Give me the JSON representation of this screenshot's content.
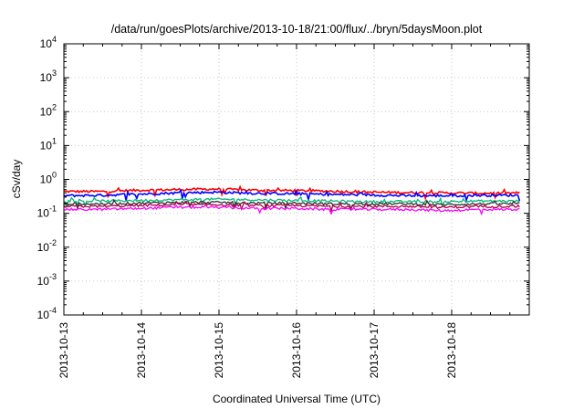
{
  "chart_data": {
    "type": "line",
    "title": "/data/run/goesPlots/archive/2013-10-18/21:00/flux/../bryn/5daysMoon.plot",
    "xlabel": "Coordinated Universal Time (UTC)",
    "ylabel": "cSv/day",
    "x_range": [
      "2013-10-13",
      "2013-10-19"
    ],
    "x_ticks": [
      "2013-10-13",
      "2013-10-14",
      "2013-10-15",
      "2013-10-16",
      "2013-10-17",
      "2013-10-18"
    ],
    "y_scale": "log",
    "ylim": [
      0.0001,
      10000
    ],
    "y_ticks": [
      {
        "base": "10",
        "exp": "-4"
      },
      {
        "base": "10",
        "exp": "-3"
      },
      {
        "base": "10",
        "exp": "-2"
      },
      {
        "base": "10",
        "exp": "-1"
      },
      {
        "base": "10",
        "exp": "0"
      },
      {
        "base": "10",
        "exp": "1"
      },
      {
        "base": "10",
        "exp": "2"
      },
      {
        "base": "10",
        "exp": "3"
      },
      {
        "base": "10",
        "exp": "4"
      }
    ],
    "grid": true,
    "x_grid_style": "dotted",
    "series": [
      {
        "color": "#ff0000",
        "y": [
          0.44,
          0.44,
          0.48,
          0.5,
          0.52,
          0.48,
          0.47,
          0.45,
          0.42,
          0.41,
          0.4,
          0.39,
          0.4
        ]
      },
      {
        "color": "#0000ff",
        "y": [
          0.33,
          0.34,
          0.37,
          0.4,
          0.42,
          0.39,
          0.38,
          0.36,
          0.35,
          0.33,
          0.33,
          0.34,
          0.34
        ]
      },
      {
        "color": "#00bb77",
        "y": [
          0.23,
          0.23,
          0.24,
          0.25,
          0.26,
          0.25,
          0.24,
          0.23,
          0.22,
          0.22,
          0.22,
          0.23,
          0.23
        ]
      },
      {
        "color": "#333333",
        "y": [
          0.19,
          0.19,
          0.2,
          0.21,
          0.21,
          0.2,
          0.2,
          0.19,
          0.19,
          0.19,
          0.18,
          0.19,
          0.19
        ]
      },
      {
        "color": "#aa0044",
        "y": [
          0.16,
          0.16,
          0.17,
          0.18,
          0.18,
          0.17,
          0.17,
          0.16,
          0.16,
          0.16,
          0.15,
          0.16,
          0.16
        ]
      },
      {
        "color": "#ff00ff",
        "y": [
          0.13,
          0.13,
          0.14,
          0.15,
          0.15,
          0.14,
          0.14,
          0.13,
          0.13,
          0.13,
          0.12,
          0.13,
          0.13
        ]
      }
    ]
  }
}
